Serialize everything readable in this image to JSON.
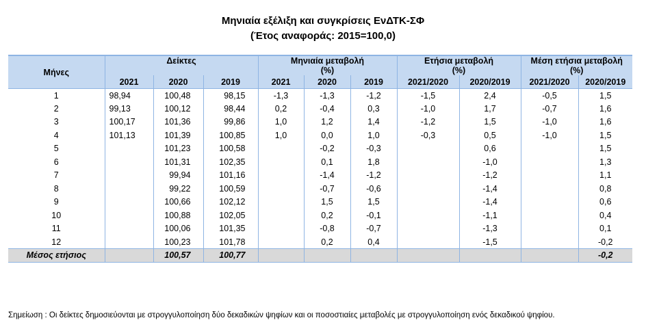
{
  "title_line1": "Μηνιαία εξέλιξη και συγκρίσεις ΕνΔΤΚ-ΣΦ",
  "title_line2": "(Έτος αναφοράς: 2015=100,0)",
  "header": {
    "months": "Μήνες",
    "indices": "Δείκτες",
    "monthly_change": "Μηνιαία μεταβολή",
    "monthly_change_unit": "(%)",
    "annual_change": "Ετήσια μεταβολή",
    "annual_change_unit": "(%)",
    "avg_annual_change": "Μέση ετήσια μεταβολή",
    "avg_annual_change_unit": "(%)",
    "sub": [
      "2021",
      "2020",
      "2019",
      "2021",
      "2020",
      "2019",
      "2021/2020",
      "2020/2019",
      "2021/2020",
      "2020/2019"
    ]
  },
  "rows": [
    {
      "month": "1",
      "cells": [
        "98,94",
        "100,48",
        "98,15",
        "-1,3",
        "-1,3",
        "-1,2",
        "-1,5",
        "2,4",
        "-0,5",
        "1,5"
      ]
    },
    {
      "month": "2",
      "cells": [
        "99,13",
        "100,12",
        "98,44",
        "0,2",
        "-0,4",
        "0,3",
        "-1,0",
        "1,7",
        "-0,7",
        "1,6"
      ]
    },
    {
      "month": "3",
      "cells": [
        "100,17",
        "101,36",
        "99,86",
        "1,0",
        "1,2",
        "1,4",
        "-1,2",
        "1,5",
        "-1,0",
        "1,6"
      ]
    },
    {
      "month": "4",
      "cells": [
        "101,13",
        "101,39",
        "100,85",
        "1,0",
        "0,0",
        "1,0",
        "-0,3",
        "0,5",
        "-1,0",
        "1,5"
      ]
    },
    {
      "month": "5",
      "cells": [
        "",
        "101,23",
        "100,58",
        "",
        "-0,2",
        "-0,3",
        "",
        "0,6",
        "",
        "1,5"
      ]
    },
    {
      "month": "6",
      "cells": [
        "",
        "101,31",
        "102,35",
        "",
        "0,1",
        "1,8",
        "",
        "-1,0",
        "",
        "1,3"
      ]
    },
    {
      "month": "7",
      "cells": [
        "",
        "99,94",
        "101,16",
        "",
        "-1,4",
        "-1,2",
        "",
        "-1,2",
        "",
        "1,1"
      ]
    },
    {
      "month": "8",
      "cells": [
        "",
        "99,22",
        "100,59",
        "",
        "-0,7",
        "-0,6",
        "",
        "-1,4",
        "",
        "0,8"
      ]
    },
    {
      "month": "9",
      "cells": [
        "",
        "100,66",
        "102,12",
        "",
        "1,5",
        "1,5",
        "",
        "-1,4",
        "",
        "0,6"
      ]
    },
    {
      "month": "10",
      "cells": [
        "",
        "100,88",
        "102,05",
        "",
        "0,2",
        "-0,1",
        "",
        "-1,1",
        "",
        "0,4"
      ]
    },
    {
      "month": "11",
      "cells": [
        "",
        "100,06",
        "101,35",
        "",
        "-0,8",
        "-0,7",
        "",
        "-1,3",
        "",
        "0,1"
      ]
    },
    {
      "month": "12",
      "cells": [
        "",
        "100,23",
        "101,78",
        "",
        "0,2",
        "0,4",
        "",
        "-1,5",
        "",
        "-0,2"
      ]
    }
  ],
  "average_row": {
    "label": "Μέσος ετήσιος",
    "cells": [
      "",
      "100,57",
      "100,77",
      "",
      "",
      "",
      "",
      "",
      "",
      "-0,2"
    ]
  },
  "note": "Σημείωση : Οι δείκτες δημοσιεύονται με στρογγυλοποίηση δύο δεκαδικών ψηφίων και οι ποσοστιαίες μεταβολές με στρογγυλοποίηση ενός δεκαδικού ψηφίου."
}
